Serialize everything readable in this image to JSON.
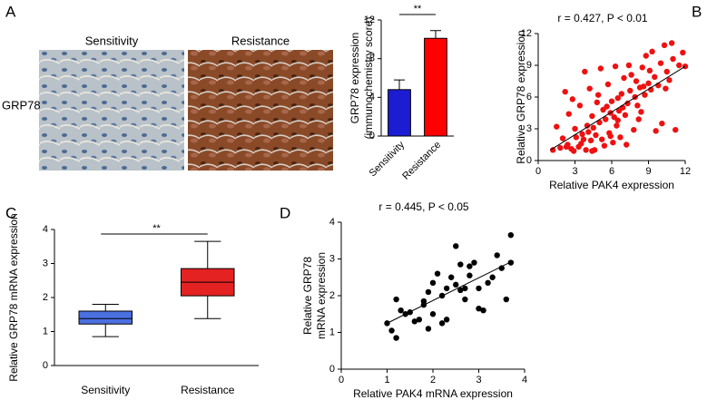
{
  "panel_labels": [
    "A",
    "B",
    "C",
    "D"
  ],
  "images": {
    "row_label": "GRP78",
    "columns": [
      "Sensitivity",
      "Resistance"
    ]
  },
  "chart_data": [
    {
      "type": "bar",
      "y_label": [
        "GRP78 expression",
        "(immunochemistry score)"
      ],
      "categories": [
        "Sensitivity",
        "Resistance"
      ],
      "values": [
        4.8,
        10.1
      ],
      "errors": [
        1.0,
        0.8
      ],
      "colors": [
        "#1c1cd2",
        "#ff0000"
      ],
      "ylim": [
        0,
        12
      ],
      "yticks": [
        0,
        4,
        8,
        12
      ],
      "annotation": "**"
    },
    {
      "type": "scatter",
      "title": "r = 0.427, P < 0.01",
      "x_label": "Relative PAK4 expression",
      "y_label": "Relative GRP78 expression",
      "color": "#ee1111",
      "xlim": [
        0,
        12
      ],
      "xticks": [
        0,
        3,
        6,
        9,
        12
      ],
      "ylim": [
        0,
        12
      ],
      "yticks": [
        0,
        3,
        6,
        9,
        12
      ],
      "x": [
        1.2,
        1.5,
        1.8,
        2.0,
        2.2,
        2.4,
        2.5,
        2.7,
        2.9,
        3.0,
        3.1,
        3.3,
        3.4,
        3.5,
        3.6,
        3.8,
        3.9,
        4.0,
        4.1,
        4.2,
        4.3,
        4.4,
        4.5,
        4.6,
        4.7,
        4.8,
        5.0,
        5.1,
        5.2,
        5.3,
        5.4,
        5.5,
        5.6,
        5.7,
        5.8,
        5.9,
        6.0,
        6.1,
        6.2,
        6.3,
        6.4,
        6.5,
        6.6,
        6.7,
        6.8,
        6.9,
        7.0,
        7.1,
        7.2,
        7.3,
        7.5,
        7.6,
        7.8,
        7.9,
        8.0,
        8.1,
        8.3,
        8.4,
        8.5,
        8.6,
        8.7,
        8.8,
        9.0,
        9.1,
        9.2,
        9.3,
        9.5,
        9.6,
        9.8,
        10.0,
        10.1,
        10.3,
        10.5,
        10.7,
        10.9,
        11.0,
        11.2,
        11.5,
        11.8,
        12.0,
        2.3,
        3.7,
        4.9,
        6.5,
        7.4,
        2.8,
        4.4,
        5.9,
        8.2,
        10.4
      ],
      "values": [
        1.0,
        3.2,
        1.2,
        2.1,
        6.5,
        1.5,
        4.4,
        1.1,
        0.9,
        3.0,
        2.2,
        1.3,
        5.2,
        1.6,
        2.5,
        8.4,
        1.0,
        3.3,
        2.7,
        6.8,
        1.9,
        4.2,
        3.1,
        1.0,
        2.4,
        5.5,
        3.6,
        8.7,
        2.0,
        4.8,
        1.4,
        3.9,
        5.1,
        7.2,
        2.6,
        4.5,
        5.6,
        1.7,
        4.1,
        8.9,
        3.3,
        5.9,
        4.7,
        2.2,
        6.3,
        5.0,
        7.8,
        4.3,
        1.5,
        5.4,
        6.6,
        8.1,
        2.9,
        6.0,
        7.5,
        5.2,
        6.9,
        4.6,
        8.8,
        7.0,
        6.2,
        9.9,
        7.3,
        8.5,
        6.7,
        10.3,
        7.9,
        2.8,
        7.1,
        9.2,
        3.5,
        10.9,
        8.4,
        7.6,
        11.1,
        9.6,
        2.9,
        9.0,
        10.2,
        8.9,
        1.3,
        2.0,
        6.2,
        3.8,
        9.0,
        5.8,
        0.9,
        2.3,
        3.9,
        6.8
      ],
      "fit": {
        "x": [
          1,
          12
        ],
        "y": [
          1.0,
          8.9
        ]
      }
    },
    {
      "type": "box",
      "y_label": "Relative GRP78 mRNA expression",
      "categories": [
        "Sensitivity",
        "Resistance"
      ],
      "boxes": [
        {
          "min": 0.85,
          "q1": 1.22,
          "median": 1.38,
          "q3": 1.6,
          "max": 1.8
        },
        {
          "min": 1.38,
          "q1": 2.05,
          "median": 2.45,
          "q3": 2.85,
          "max": 3.65
        }
      ],
      "colors": [
        "#4a6fe0",
        "#e52222"
      ],
      "ylim": [
        0,
        4
      ],
      "yticks": [
        0,
        1,
        2,
        3,
        4
      ],
      "annotation": "**"
    },
    {
      "type": "scatter",
      "title": "r = 0.445, P < 0.05",
      "x_label": "Relative PAK4 mRNA expression",
      "y_label": [
        "Relative GRP78",
        "mRNA expression"
      ],
      "color": "#000000",
      "xlim": [
        0,
        4
      ],
      "xticks": [
        0,
        1,
        2,
        3,
        4
      ],
      "ylim": [
        0,
        4
      ],
      "yticks": [
        0,
        1,
        2,
        3,
        4
      ],
      "x": [
        1.0,
        1.1,
        1.2,
        1.2,
        1.3,
        1.4,
        1.5,
        1.6,
        1.7,
        1.8,
        1.8,
        1.9,
        1.9,
        2.0,
        2.0,
        2.1,
        2.2,
        2.2,
        2.3,
        2.3,
        2.4,
        2.5,
        2.5,
        2.6,
        2.6,
        2.7,
        2.7,
        2.8,
        2.8,
        2.9,
        3.0,
        3.0,
        3.1,
        3.2,
        3.3,
        3.4,
        3.5,
        3.6,
        3.7,
        3.7
      ],
      "values": [
        1.25,
        1.05,
        0.85,
        1.9,
        1.6,
        1.5,
        1.55,
        1.3,
        1.35,
        1.75,
        1.85,
        2.1,
        1.1,
        2.35,
        1.5,
        2.6,
        1.25,
        2.0,
        1.35,
        2.2,
        2.5,
        2.3,
        3.35,
        2.15,
        2.85,
        2.2,
        1.9,
        2.8,
        2.55,
        2.9,
        1.65,
        2.2,
        1.6,
        2.35,
        2.5,
        3.1,
        2.75,
        1.9,
        3.65,
        2.9
      ],
      "fit": {
        "x": [
          1.0,
          3.75
        ],
        "y": [
          1.25,
          2.95
        ]
      }
    }
  ]
}
